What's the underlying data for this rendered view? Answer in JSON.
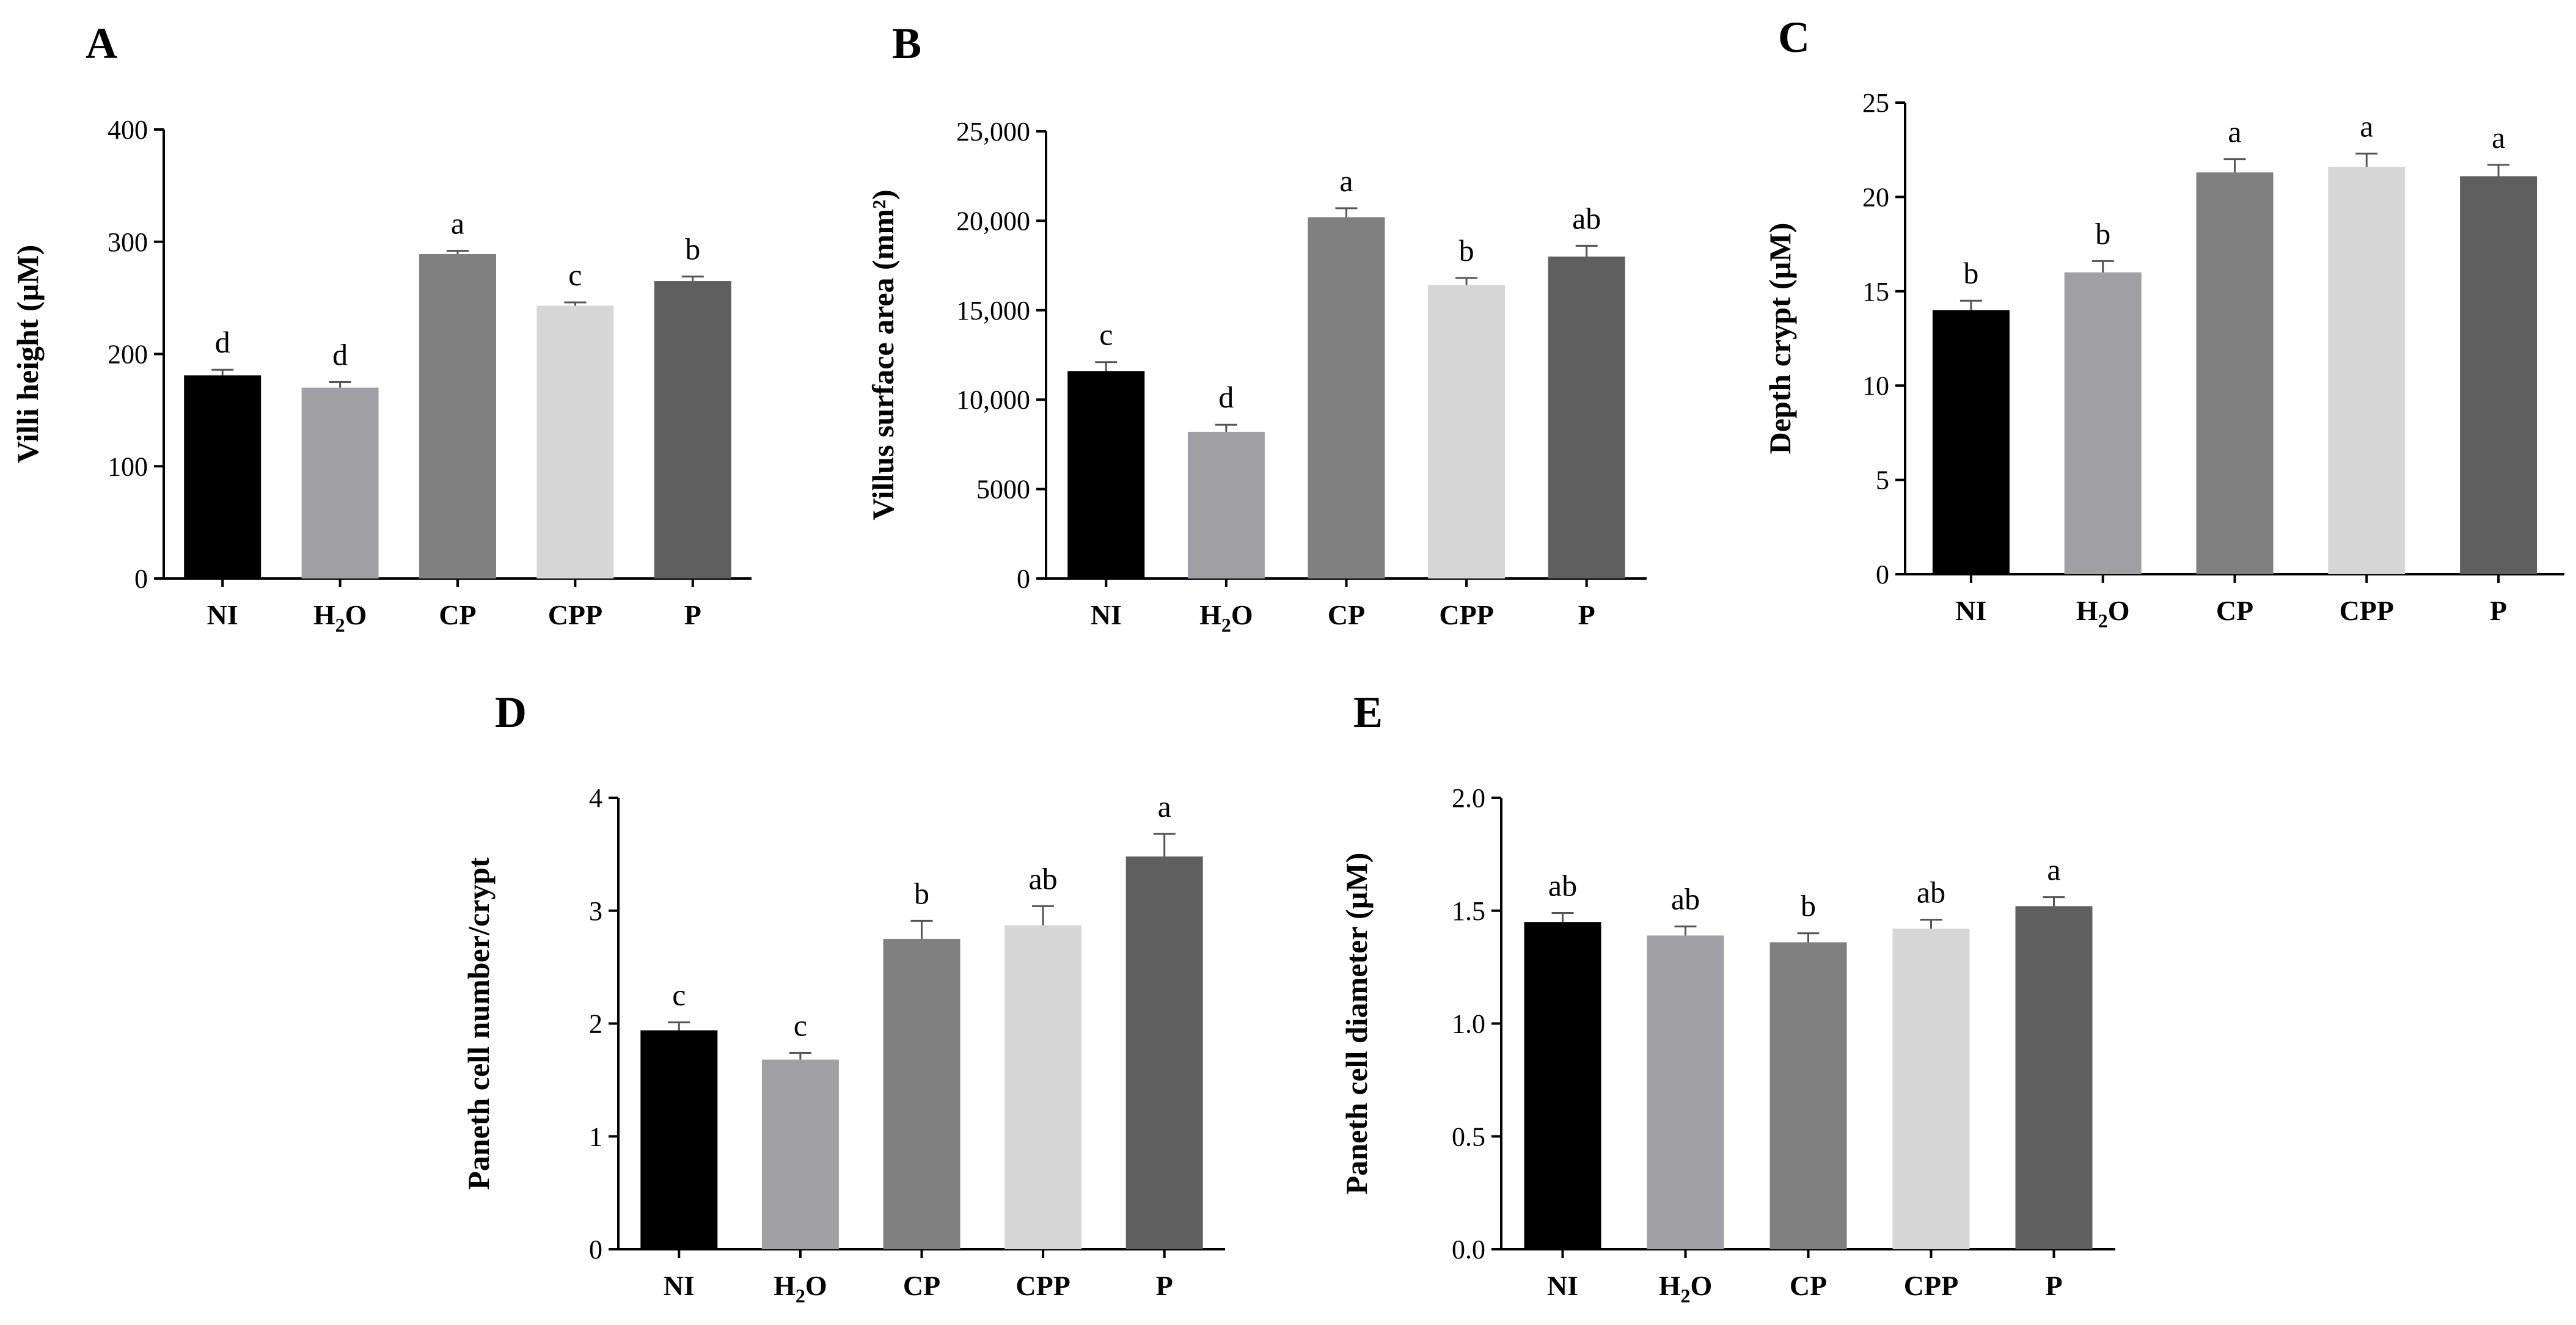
{
  "colors": {
    "NI": "#000000",
    "H2O": "#a0a0a4",
    "CP": "#808080",
    "CPP": "#d6d6d6",
    "P": "#5f5f5f",
    "axis": "#000000",
    "error": "#555555"
  },
  "chart_data": [
    {
      "panel": "A",
      "type": "bar",
      "title": "",
      "xlabel": "",
      "ylabel": "Villi height (µM)",
      "categories": [
        "NI",
        "H2O",
        "CP",
        "CPP",
        "P"
      ],
      "category_display": [
        {
          "main": "NI"
        },
        {
          "main": "H",
          "sub": "2",
          "tail": "O"
        },
        {
          "main": "CP"
        },
        {
          "main": "CPP"
        },
        {
          "main": "P"
        }
      ],
      "values": [
        181,
        170,
        289,
        243,
        265
      ],
      "errors": [
        5,
        5,
        3,
        3,
        4
      ],
      "significance": [
        "d",
        "d",
        "a",
        "c",
        "b"
      ],
      "ylim": [
        0,
        400
      ],
      "yticks": [
        0,
        100,
        200,
        300,
        400
      ],
      "ytick_labels": [
        "0",
        "100",
        "200",
        "300",
        "400"
      ]
    },
    {
      "panel": "B",
      "type": "bar",
      "title": "",
      "xlabel": "",
      "ylabel": "Villus surface area (mm²)",
      "categories": [
        "NI",
        "H2O",
        "CP",
        "CPP",
        "P"
      ],
      "category_display": [
        {
          "main": "NI"
        },
        {
          "main": "H",
          "sub": "2",
          "tail": "O"
        },
        {
          "main": "CP"
        },
        {
          "main": "CPP"
        },
        {
          "main": "P"
        }
      ],
      "values": [
        11600,
        8200,
        20200,
        16400,
        18000
      ],
      "errors": [
        500,
        400,
        500,
        400,
        600
      ],
      "significance": [
        "c",
        "d",
        "a",
        "b",
        "ab"
      ],
      "ylim": [
        0,
        25000
      ],
      "yticks": [
        0,
        5000,
        10000,
        15000,
        20000,
        25000
      ],
      "ytick_labels": [
        "0",
        "5000",
        "10,000",
        "15,000",
        "20,000",
        "25,000"
      ]
    },
    {
      "panel": "C",
      "type": "bar",
      "title": "",
      "xlabel": "",
      "ylabel": "Depth crypt (µM)",
      "categories": [
        "NI",
        "H2O",
        "CP",
        "CPP",
        "P"
      ],
      "category_display": [
        {
          "main": "NI"
        },
        {
          "main": "H",
          "sub": "2",
          "tail": "O"
        },
        {
          "main": "CP"
        },
        {
          "main": "CPP"
        },
        {
          "main": "P"
        }
      ],
      "values": [
        14.0,
        16.0,
        21.3,
        21.6,
        21.1
      ],
      "errors": [
        0.5,
        0.6,
        0.7,
        0.7,
        0.6
      ],
      "significance": [
        "b",
        "b",
        "a",
        "a",
        "a"
      ],
      "ylim": [
        0,
        25
      ],
      "yticks": [
        0,
        5,
        10,
        15,
        20,
        25
      ],
      "ytick_labels": [
        "0",
        "5",
        "10",
        "15",
        "20",
        "25"
      ]
    },
    {
      "panel": "D",
      "type": "bar",
      "title": "",
      "xlabel": "",
      "ylabel": "Paneth cell number/crypt",
      "categories": [
        "NI",
        "H2O",
        "CP",
        "CPP",
        "P"
      ],
      "category_display": [
        {
          "main": "NI"
        },
        {
          "main": "H",
          "sub": "2",
          "tail": "O"
        },
        {
          "main": "CP"
        },
        {
          "main": "CPP"
        },
        {
          "main": "P"
        }
      ],
      "values": [
        1.94,
        1.68,
        2.75,
        2.87,
        3.48
      ],
      "errors": [
        0.07,
        0.06,
        0.16,
        0.17,
        0.2
      ],
      "significance": [
        "c",
        "c",
        "b",
        "ab",
        "a"
      ],
      "ylim": [
        0,
        4
      ],
      "yticks": [
        0,
        1,
        2,
        3,
        4
      ],
      "ytick_labels": [
        "0",
        "1",
        "2",
        "3",
        "4"
      ]
    },
    {
      "panel": "E",
      "type": "bar",
      "title": "",
      "xlabel": "",
      "ylabel": "Paneth cell diameter (µM)",
      "categories": [
        "NI",
        "H2O",
        "CP",
        "CPP",
        "P"
      ],
      "category_display": [
        {
          "main": "NI"
        },
        {
          "main": "H",
          "sub": "2",
          "tail": "O"
        },
        {
          "main": "CP"
        },
        {
          "main": "CPP"
        },
        {
          "main": "P"
        }
      ],
      "values": [
        1.45,
        1.39,
        1.36,
        1.42,
        1.52
      ],
      "errors": [
        0.04,
        0.04,
        0.04,
        0.04,
        0.04
      ],
      "significance": [
        "ab",
        "ab",
        "b",
        "ab",
        "a"
      ],
      "ylim": [
        0,
        2
      ],
      "yticks": [
        0,
        0.5,
        1,
        1.5,
        2
      ],
      "ytick_labels": [
        "0.0",
        "0.5",
        "1.0",
        "1.5",
        "2.0"
      ]
    }
  ]
}
